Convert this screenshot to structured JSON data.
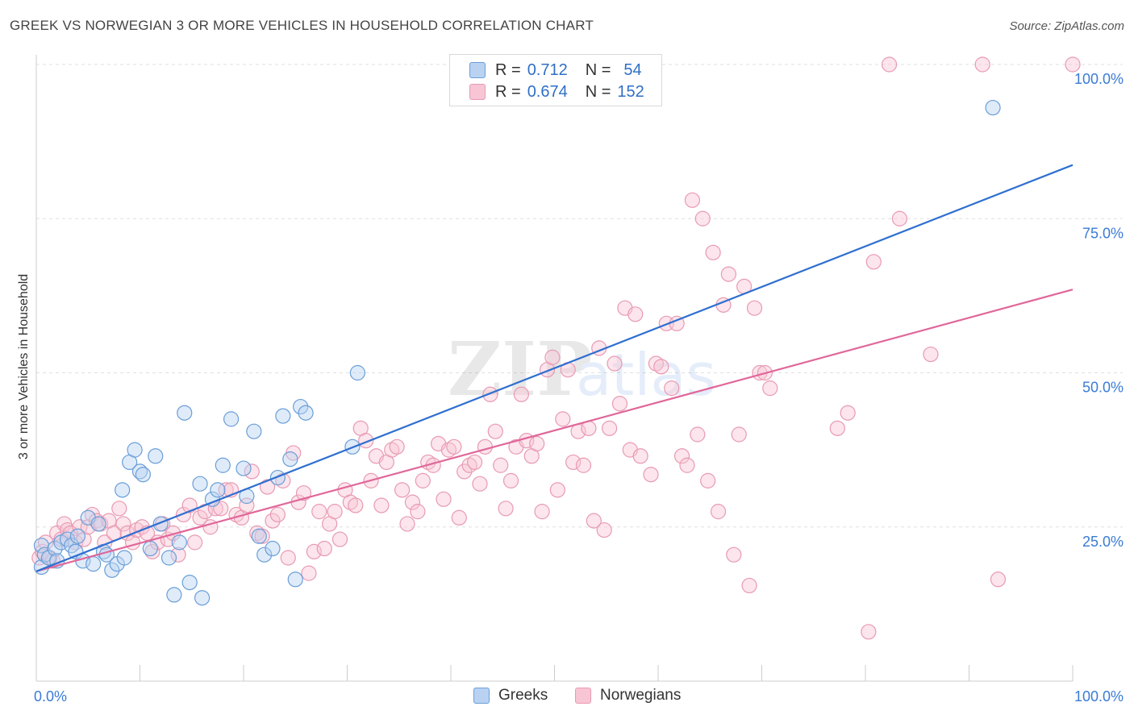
{
  "header": {
    "title": "GREEK VS NORWEGIAN 3 OR MORE VEHICLES IN HOUSEHOLD CORRELATION CHART",
    "source": "Source: ZipAtlas.com"
  },
  "watermark": {
    "zip": "ZIP",
    "atlas": "atlas"
  },
  "legend": {
    "r_label": "R =",
    "n_label": "N =",
    "rows": [
      {
        "r": "0.712",
        "n": "54"
      },
      {
        "r": "0.674",
        "n": "152"
      }
    ]
  },
  "colors": {
    "greeks_fill": "#b9d2f2",
    "greeks_stroke": "#6a9ed8",
    "greeks_line": "#2f6fd0",
    "norwegians_fill": "#f8c5d5",
    "norwegians_stroke": "#e89ab3",
    "norwegians_line": "#e0679a",
    "axis_text": "#3a7bd5"
  },
  "chart_data": {
    "type": "scatter",
    "title": "GREEK VS NORWEGIAN 3 OR MORE VEHICLES IN HOUSEHOLD CORRELATION CHART",
    "xlabel": "",
    "ylabel": "3 or more Vehicles in Household",
    "xlim": [
      0,
      100
    ],
    "ylim": [
      0,
      100
    ],
    "x_tick_labels": [
      "0.0%",
      "100.0%"
    ],
    "y_tick_labels": [
      "25.0%",
      "50.0%",
      "75.0%",
      "100.0%"
    ],
    "y_ticks": [
      25,
      50,
      75,
      100
    ],
    "grid": true,
    "legend_position": "top-center",
    "series": [
      {
        "name": "Greeks",
        "r": 0.712,
        "n": 54,
        "trend": {
          "x": [
            0,
            100
          ],
          "y": [
            17.8,
            83.7
          ]
        },
        "points": [
          [
            0.5,
            22
          ],
          [
            0.5,
            18.5
          ],
          [
            0.8,
            20.5
          ],
          [
            1.2,
            20
          ],
          [
            1.8,
            21.5
          ],
          [
            2,
            19.5
          ],
          [
            2.4,
            22.5
          ],
          [
            3,
            23
          ],
          [
            3.4,
            22
          ],
          [
            3.8,
            21
          ],
          [
            4,
            23.5
          ],
          [
            4.5,
            19.5
          ],
          [
            5,
            26.5
          ],
          [
            5.5,
            19
          ],
          [
            6,
            25.5
          ],
          [
            6.5,
            21
          ],
          [
            6.8,
            20.5
          ],
          [
            7.3,
            18
          ],
          [
            7.8,
            19
          ],
          [
            8.3,
            31
          ],
          [
            8.5,
            20
          ],
          [
            9,
            35.5
          ],
          [
            9.5,
            37.5
          ],
          [
            10,
            34
          ],
          [
            10.3,
            33.5
          ],
          [
            11,
            21.5
          ],
          [
            11.5,
            36.5
          ],
          [
            12,
            25.5
          ],
          [
            12.8,
            20
          ],
          [
            13.3,
            14
          ],
          [
            13.8,
            22.5
          ],
          [
            14.3,
            43.5
          ],
          [
            14.8,
            16
          ],
          [
            15.8,
            32
          ],
          [
            16,
            13.5
          ],
          [
            17,
            29.5
          ],
          [
            17.5,
            31
          ],
          [
            18,
            35
          ],
          [
            18.8,
            42.5
          ],
          [
            20,
            34.5
          ],
          [
            20.3,
            30
          ],
          [
            21,
            40.5
          ],
          [
            21.5,
            23.5
          ],
          [
            22,
            20.5
          ],
          [
            22.8,
            21.5
          ],
          [
            23.3,
            33
          ],
          [
            23.8,
            43
          ],
          [
            24.5,
            36
          ],
          [
            25,
            16.5
          ],
          [
            25.5,
            44.5
          ],
          [
            26,
            43.5
          ],
          [
            30.5,
            38
          ],
          [
            31,
            50
          ],
          [
            92.3,
            93
          ]
        ]
      },
      {
        "name": "Norwegians",
        "r": 0.674,
        "n": 152,
        "trend": {
          "x": [
            0,
            100
          ],
          "y": [
            17.8,
            63.5
          ]
        },
        "points": [
          [
            0.3,
            20
          ],
          [
            0.6,
            21
          ],
          [
            0.9,
            22.5
          ],
          [
            1.3,
            20
          ],
          [
            1.6,
            19.5
          ],
          [
            2,
            24
          ],
          [
            2.4,
            23
          ],
          [
            2.7,
            25.5
          ],
          [
            3,
            24.5
          ],
          [
            3.3,
            24
          ],
          [
            3.8,
            22.5
          ],
          [
            4.2,
            25
          ],
          [
            4.6,
            23
          ],
          [
            5,
            25
          ],
          [
            5.4,
            27
          ],
          [
            5.8,
            26
          ],
          [
            6.2,
            25.5
          ],
          [
            6.6,
            22.5
          ],
          [
            7,
            26
          ],
          [
            7.5,
            24
          ],
          [
            8,
            28
          ],
          [
            8.4,
            25.5
          ],
          [
            8.8,
            24
          ],
          [
            9.3,
            22.5
          ],
          [
            9.7,
            24.5
          ],
          [
            10.2,
            25
          ],
          [
            10.7,
            24
          ],
          [
            11.2,
            21
          ],
          [
            11.7,
            22.5
          ],
          [
            12.2,
            25.5
          ],
          [
            12.7,
            23
          ],
          [
            13.2,
            24
          ],
          [
            13.7,
            20.5
          ],
          [
            14.2,
            27
          ],
          [
            14.8,
            28.5
          ],
          [
            15.3,
            22.5
          ],
          [
            15.8,
            26.5
          ],
          [
            16.3,
            27.5
          ],
          [
            16.8,
            25
          ],
          [
            17.3,
            28
          ],
          [
            17.8,
            28
          ],
          [
            18.3,
            31
          ],
          [
            18.8,
            31
          ],
          [
            19.3,
            27
          ],
          [
            19.8,
            26.5
          ],
          [
            20.3,
            28.5
          ],
          [
            20.8,
            34
          ],
          [
            21.3,
            24
          ],
          [
            21.8,
            23.5
          ],
          [
            22.3,
            31.5
          ],
          [
            22.8,
            26
          ],
          [
            23.3,
            27
          ],
          [
            23.8,
            32.5
          ],
          [
            24.3,
            20
          ],
          [
            24.8,
            37
          ],
          [
            25.3,
            29
          ],
          [
            25.8,
            30.5
          ],
          [
            26.3,
            17.5
          ],
          [
            26.8,
            21
          ],
          [
            27.3,
            27.5
          ],
          [
            27.8,
            21.5
          ],
          [
            28.3,
            25.5
          ],
          [
            28.8,
            27.5
          ],
          [
            29.3,
            23
          ],
          [
            29.8,
            31
          ],
          [
            30.3,
            29
          ],
          [
            30.8,
            28.5
          ],
          [
            31.3,
            41
          ],
          [
            31.8,
            39
          ],
          [
            32.3,
            32.5
          ],
          [
            32.8,
            36.5
          ],
          [
            33.3,
            28.5
          ],
          [
            33.8,
            35.5
          ],
          [
            34.3,
            37.5
          ],
          [
            34.8,
            38
          ],
          [
            35.3,
            31
          ],
          [
            35.8,
            25.5
          ],
          [
            36.3,
            29
          ],
          [
            36.8,
            27.5
          ],
          [
            37.3,
            32.5
          ],
          [
            37.8,
            35.5
          ],
          [
            38.3,
            35
          ],
          [
            38.8,
            38.5
          ],
          [
            39.3,
            29.5
          ],
          [
            39.8,
            37.5
          ],
          [
            40.3,
            38
          ],
          [
            40.8,
            26.5
          ],
          [
            41.3,
            34
          ],
          [
            41.8,
            35
          ],
          [
            42.3,
            35.5
          ],
          [
            42.8,
            32
          ],
          [
            43.3,
            38
          ],
          [
            43.8,
            46.5
          ],
          [
            44.3,
            40.5
          ],
          [
            44.8,
            35
          ],
          [
            45.3,
            28
          ],
          [
            45.8,
            32.5
          ],
          [
            46.3,
            38
          ],
          [
            46.8,
            46.5
          ],
          [
            47.3,
            39
          ],
          [
            47.8,
            36.5
          ],
          [
            48.3,
            38.5
          ],
          [
            48.8,
            27.5
          ],
          [
            49.3,
            50.5
          ],
          [
            49.8,
            52.5
          ],
          [
            50.3,
            31
          ],
          [
            50.8,
            42.5
          ],
          [
            51.3,
            50.5
          ],
          [
            51.8,
            35.5
          ],
          [
            52.3,
            40.5
          ],
          [
            52.8,
            35
          ],
          [
            53.3,
            41
          ],
          [
            53.8,
            26
          ],
          [
            54.3,
            54
          ],
          [
            54.8,
            24.5
          ],
          [
            55.3,
            41
          ],
          [
            55.8,
            51.5
          ],
          [
            56.3,
            45
          ],
          [
            56.8,
            60.5
          ],
          [
            57.3,
            37.5
          ],
          [
            57.8,
            59.5
          ],
          [
            58.3,
            36.5
          ],
          [
            59.3,
            33.5
          ],
          [
            59.8,
            51.5
          ],
          [
            60.3,
            51
          ],
          [
            60.8,
            58
          ],
          [
            61.3,
            47.5
          ],
          [
            61.8,
            58
          ],
          [
            62.3,
            36.5
          ],
          [
            62.8,
            35
          ],
          [
            63.3,
            78
          ],
          [
            63.8,
            40
          ],
          [
            64.3,
            75
          ],
          [
            64.8,
            32.5
          ],
          [
            65.3,
            69.5
          ],
          [
            65.8,
            27.5
          ],
          [
            66.3,
            61
          ],
          [
            66.8,
            66
          ],
          [
            67.3,
            20.5
          ],
          [
            67.8,
            40
          ],
          [
            68.3,
            64
          ],
          [
            68.8,
            15.5
          ],
          [
            69.3,
            60.5
          ],
          [
            69.8,
            50
          ],
          [
            70.3,
            50
          ],
          [
            70.8,
            47.5
          ],
          [
            77.3,
            41
          ],
          [
            78.3,
            43.5
          ],
          [
            80.3,
            8
          ],
          [
            80.8,
            68
          ],
          [
            82.3,
            100
          ],
          [
            83.3,
            75
          ],
          [
            86.3,
            53
          ],
          [
            91.3,
            100
          ],
          [
            92.8,
            16.5
          ],
          [
            100,
            100
          ]
        ]
      }
    ]
  }
}
